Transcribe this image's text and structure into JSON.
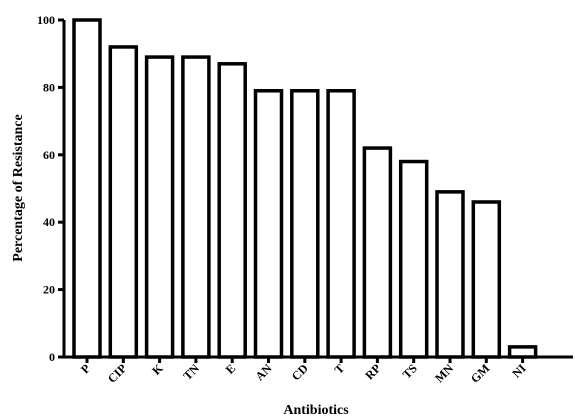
{
  "chart_data": {
    "type": "bar",
    "title": "",
    "xlabel": "Antibiotics",
    "ylabel": "Percentage of Resistance",
    "categories": [
      "P",
      "CIP",
      "K",
      "TN",
      "E",
      "AN",
      "CD",
      "T",
      "RP",
      "TS",
      "MN",
      "GM",
      "NI"
    ],
    "values": [
      100,
      92,
      89,
      89,
      87,
      79,
      79,
      79,
      62,
      58,
      49,
      46,
      3
    ],
    "ylim": [
      0,
      100
    ],
    "yticks": [
      0,
      20,
      40,
      60,
      80,
      100
    ],
    "grid": false,
    "legend": "none",
    "bar_fill": "#ffffff",
    "bar_stroke": "#000000"
  }
}
